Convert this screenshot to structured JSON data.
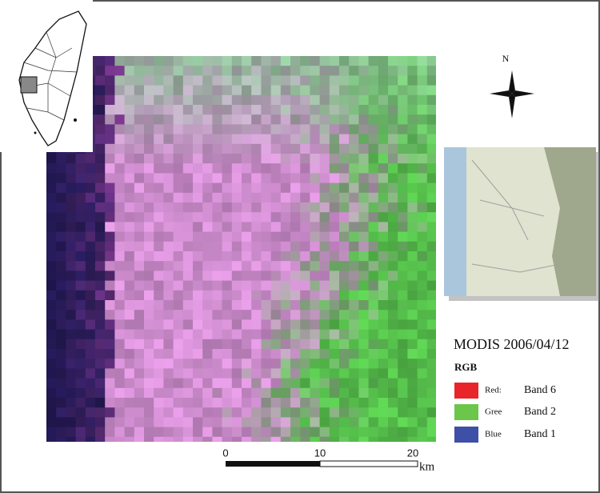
{
  "north_label": "N",
  "legend": {
    "title": "MODIS 2006/04/12",
    "subtitle": "RGB",
    "items": [
      {
        "channel": "Red:",
        "band": "Band 6"
      },
      {
        "channel": "Gree",
        "band": "Band 2"
      },
      {
        "channel": "Blue",
        "band": "Band 1"
      }
    ]
  },
  "scale_bar": {
    "labels": [
      "0",
      "10",
      "20"
    ],
    "unit": "km"
  }
}
